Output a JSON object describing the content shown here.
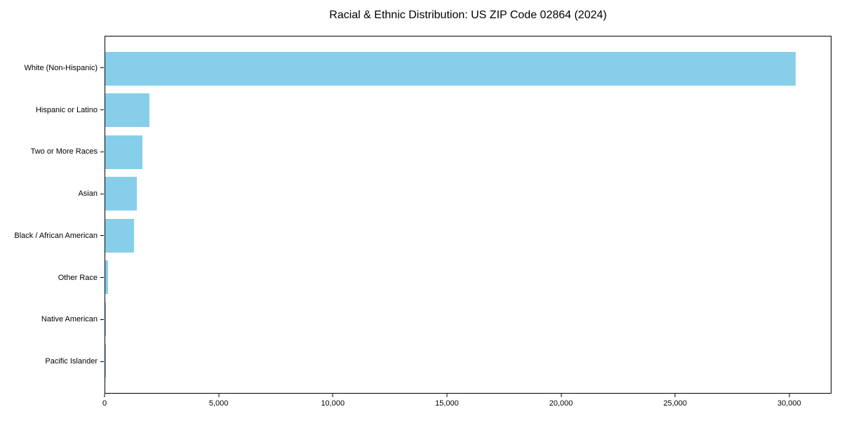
{
  "title": "Racial & Ethnic Distribution: US ZIP Code 02864 (2024)",
  "colors": {
    "bar": "#87CEEB",
    "axis": "#000000",
    "text": "#000000",
    "background": "#FFFFFF"
  },
  "chart_data": {
    "type": "bar",
    "orientation": "horizontal",
    "title": "Racial & Ethnic Distribution: US ZIP Code 02864 (2024)",
    "categories": [
      "White (Non-Hispanic)",
      "Hispanic or Latino",
      "Two or More Races",
      "Asian",
      "Black / African American",
      "Other Race",
      "Native American",
      "Pacific Islander"
    ],
    "values": [
      30300,
      1950,
      1640,
      1390,
      1260,
      120,
      20,
      10
    ],
    "xlabel": "",
    "ylabel": "",
    "xlim": [
      0,
      31850
    ],
    "xticks": {
      "values": [
        0,
        5000,
        10000,
        15000,
        20000,
        25000,
        30000
      ],
      "labels": [
        "0",
        "5,000",
        "10,000",
        "15,000",
        "20,000",
        "25,000",
        "30,000"
      ]
    },
    "grid": false,
    "legend_position": "none",
    "bar_color": "#87CEEB"
  }
}
